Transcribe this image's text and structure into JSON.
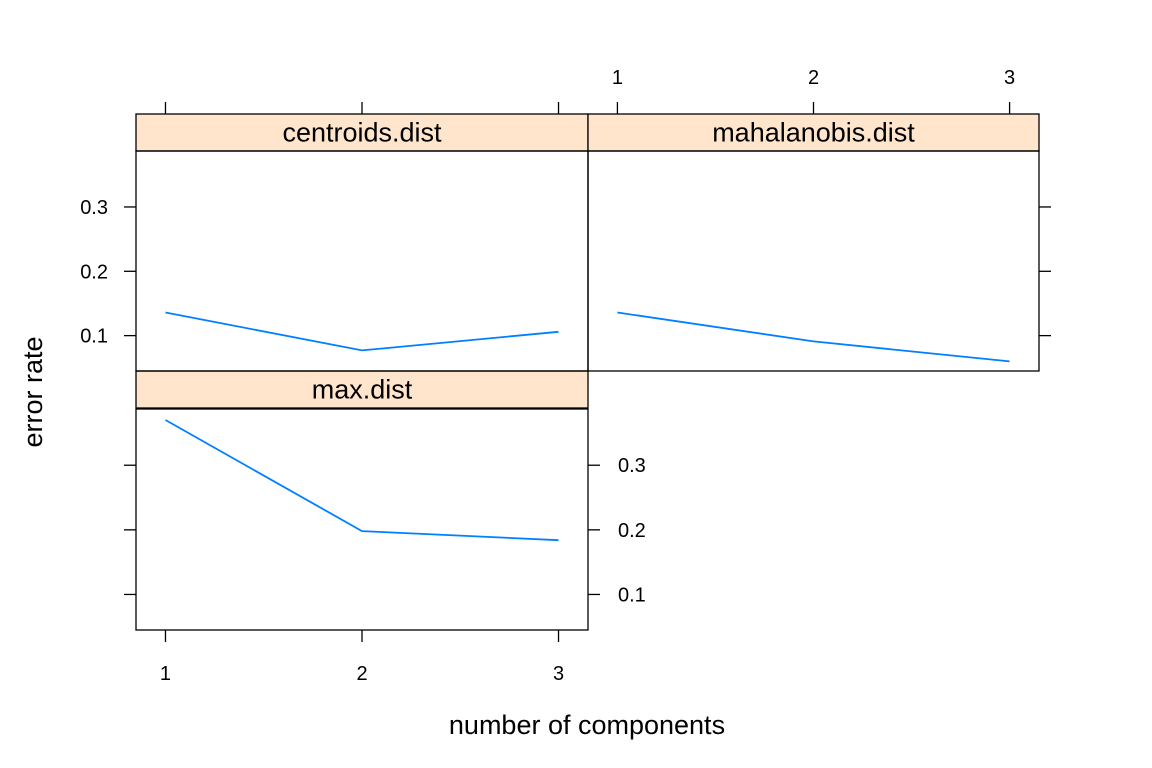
{
  "chart_data": {
    "type": "line",
    "xlabel": "number of components",
    "ylabel": "error rate",
    "x": [
      1,
      2,
      3
    ],
    "xlim": [
      0.85,
      3.15
    ],
    "ylim": [
      0.045,
      0.387
    ],
    "xticks": [
      1,
      2,
      3
    ],
    "yticks": [
      0.1,
      0.2,
      0.3
    ],
    "xtick_labels": [
      "1",
      "2",
      "3"
    ],
    "ytick_labels": [
      "0.1",
      "0.2",
      "0.3"
    ],
    "line_color": "#0080ff",
    "strip_color": "#ffe5cc",
    "grid": false,
    "layout": "2x2 lattice, panels ordered left-to-right, bottom-to-top",
    "panels": [
      {
        "title": "max.dist",
        "values": [
          0.37,
          0.198,
          0.184
        ]
      },
      {
        "title": "centroids.dist",
        "values": [
          0.136,
          0.077,
          0.106
        ]
      },
      {
        "title": "mahalanobis.dist",
        "values": [
          0.136,
          0.091,
          0.06
        ]
      }
    ]
  }
}
